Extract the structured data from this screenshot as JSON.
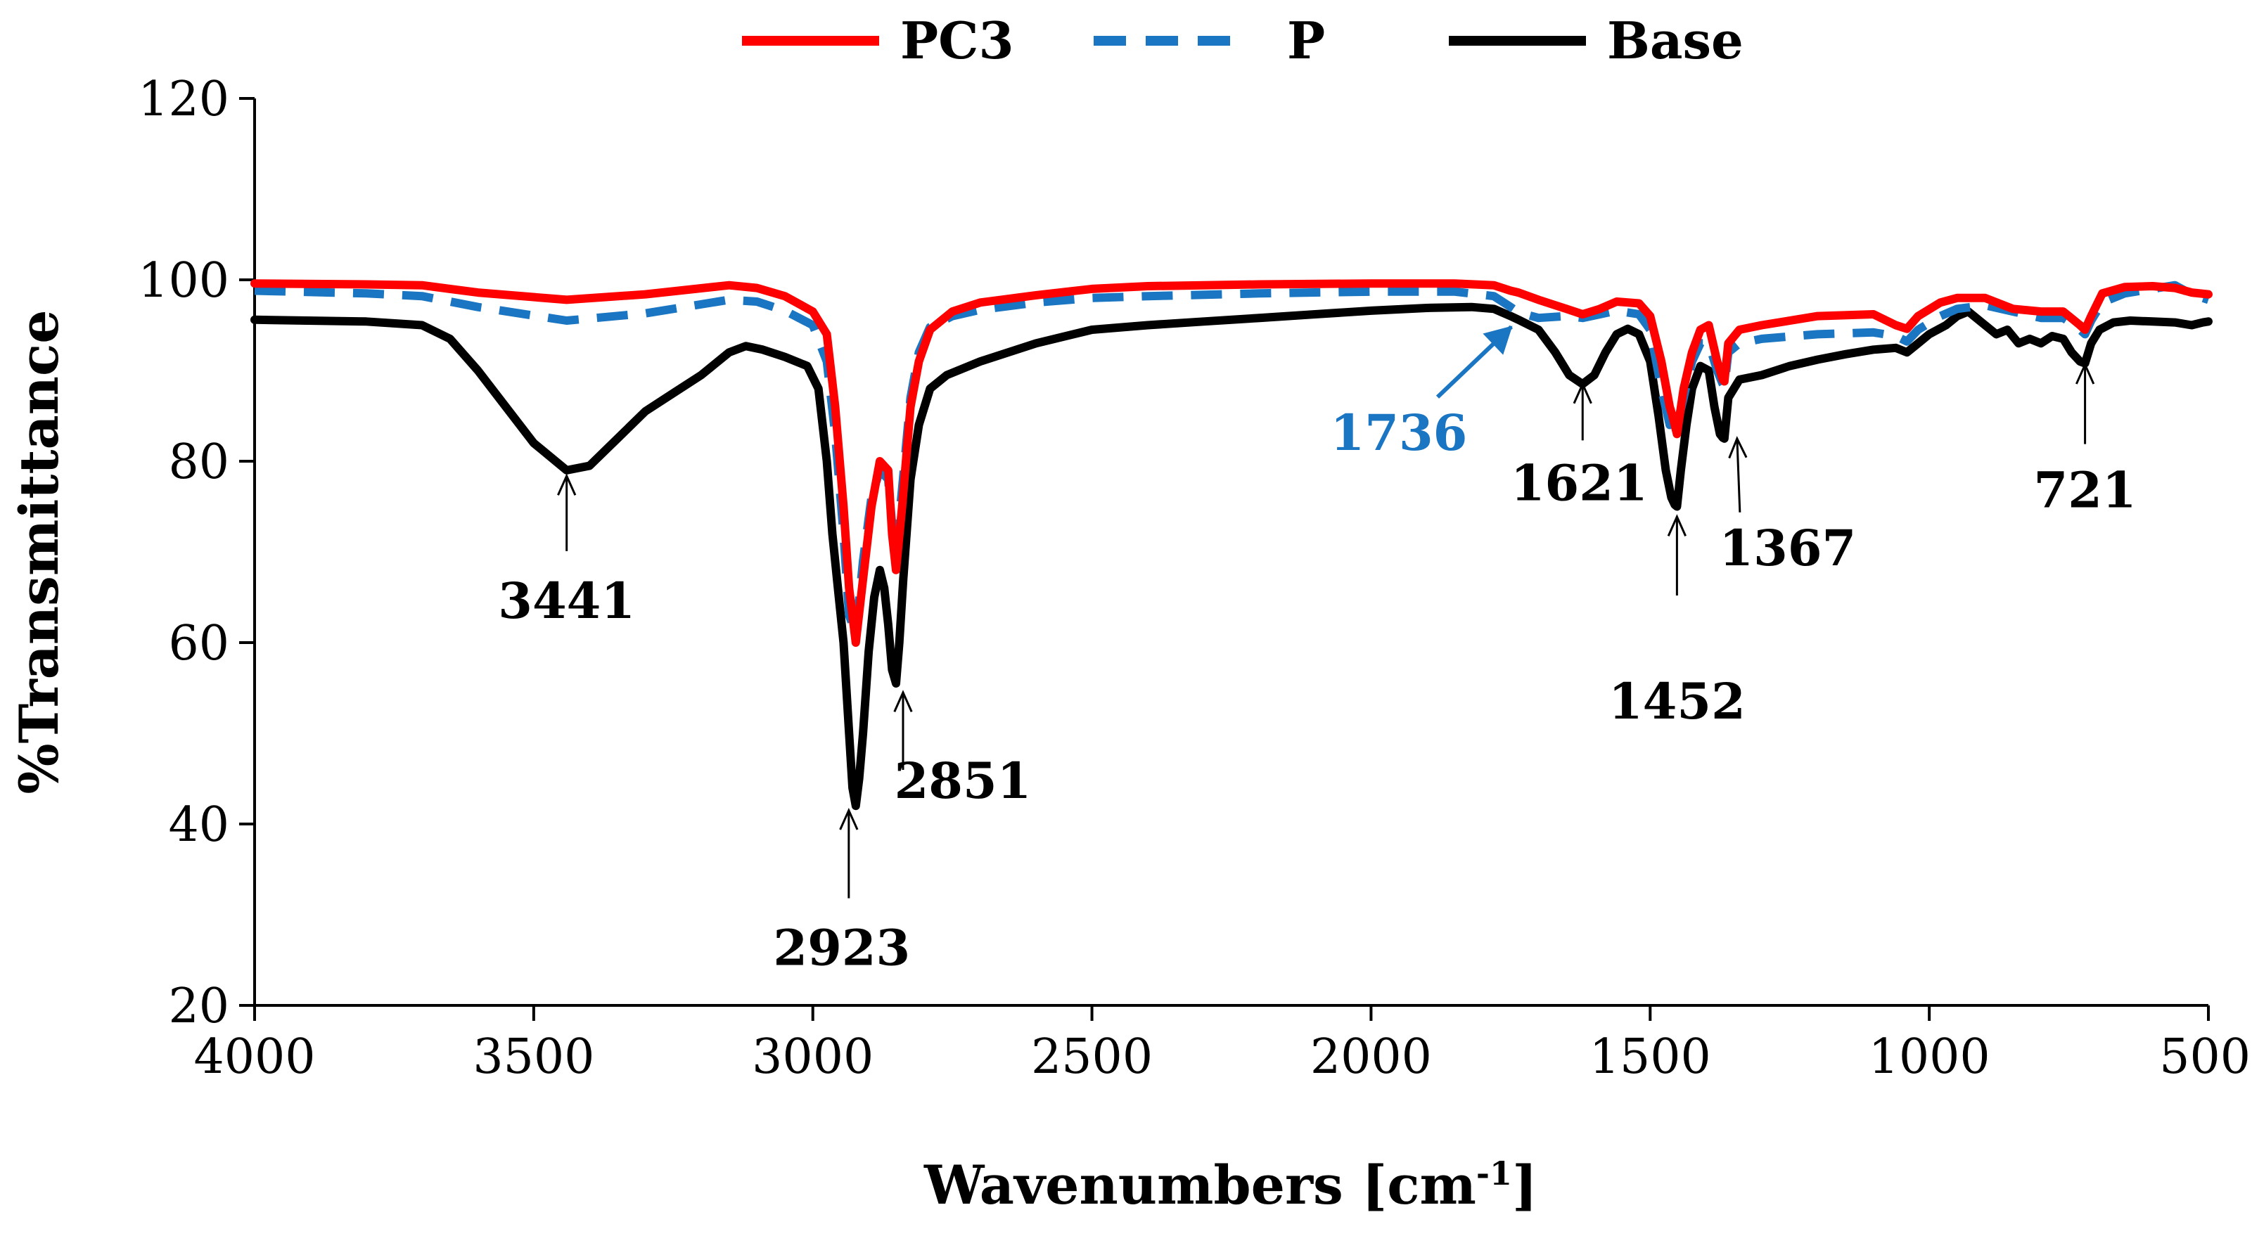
{
  "chart_data": {
    "type": "line",
    "title": "",
    "xlabel": "Wavenumbers [cm",
    "xlabel_sup": "-1",
    "xlabel_suffix": "]",
    "ylabel": "%Transmittance",
    "xlim": [
      4000,
      500
    ],
    "ylim": [
      20,
      120
    ],
    "x_ticks": [
      4000,
      3500,
      3000,
      2500,
      2000,
      1500,
      1000,
      500
    ],
    "x_tick_labels": [
      "4000",
      "3500",
      "3000",
      "2500",
      "2000",
      "1500",
      "1000",
      "500"
    ],
    "y_ticks": [
      20,
      40,
      60,
      80,
      100,
      120
    ],
    "y_tick_labels": [
      "20",
      "40",
      "60",
      "80",
      "100",
      "120"
    ],
    "grid": false,
    "legend_position": "top-center",
    "series": [
      {
        "name": "PC3",
        "color": "#ff0000",
        "dash": "solid",
        "points": [
          [
            4000,
            99.6
          ],
          [
            3800,
            99.5
          ],
          [
            3700,
            99.4
          ],
          [
            3600,
            98.6
          ],
          [
            3441,
            97.8
          ],
          [
            3300,
            98.4
          ],
          [
            3150,
            99.4
          ],
          [
            3100,
            99.1
          ],
          [
            3050,
            98.2
          ],
          [
            3000,
            96.5
          ],
          [
            2975,
            94
          ],
          [
            2960,
            86
          ],
          [
            2945,
            75
          ],
          [
            2935,
            66
          ],
          [
            2923,
            60
          ],
          [
            2910,
            67
          ],
          [
            2895,
            75
          ],
          [
            2880,
            80
          ],
          [
            2865,
            79
          ],
          [
            2858,
            72
          ],
          [
            2851,
            68
          ],
          [
            2840,
            75
          ],
          [
            2825,
            86
          ],
          [
            2810,
            91
          ],
          [
            2790,
            94.5
          ],
          [
            2750,
            96.5
          ],
          [
            2700,
            97.5
          ],
          [
            2600,
            98.3
          ],
          [
            2500,
            99
          ],
          [
            2400,
            99.3
          ],
          [
            2200,
            99.5
          ],
          [
            2000,
            99.6
          ],
          [
            1850,
            99.6
          ],
          [
            1780,
            99.4
          ],
          [
            1750,
            98.8
          ],
          [
            1736,
            98.6
          ],
          [
            1700,
            97.8
          ],
          [
            1650,
            96.8
          ],
          [
            1621,
            96.2
          ],
          [
            1590,
            96.8
          ],
          [
            1560,
            97.6
          ],
          [
            1520,
            97.4
          ],
          [
            1500,
            96
          ],
          [
            1480,
            91
          ],
          [
            1465,
            86
          ],
          [
            1460,
            85
          ],
          [
            1452,
            83
          ],
          [
            1440,
            88
          ],
          [
            1425,
            92
          ],
          [
            1410,
            94.5
          ],
          [
            1395,
            95
          ],
          [
            1380,
            91
          ],
          [
            1370,
            89
          ],
          [
            1367,
            88.8
          ],
          [
            1360,
            93
          ],
          [
            1340,
            94.5
          ],
          [
            1300,
            95
          ],
          [
            1200,
            96
          ],
          [
            1100,
            96.2
          ],
          [
            1060,
            95
          ],
          [
            1040,
            94.6
          ],
          [
            1020,
            96
          ],
          [
            980,
            97.5
          ],
          [
            950,
            98
          ],
          [
            900,
            98
          ],
          [
            850,
            96.8
          ],
          [
            800,
            96.5
          ],
          [
            760,
            96.5
          ],
          [
            740,
            95.5
          ],
          [
            730,
            95
          ],
          [
            721,
            94.5
          ],
          [
            710,
            96
          ],
          [
            690,
            98.5
          ],
          [
            650,
            99.2
          ],
          [
            600,
            99.3
          ],
          [
            560,
            99.1
          ],
          [
            530,
            98.6
          ],
          [
            500,
            98.4
          ]
        ]
      },
      {
        "name": "P",
        "color": "#1a75c2",
        "dash": "dashed",
        "points": [
          [
            4000,
            98.8
          ],
          [
            3800,
            98.5
          ],
          [
            3700,
            98.2
          ],
          [
            3600,
            97
          ],
          [
            3441,
            95.5
          ],
          [
            3300,
            96.3
          ],
          [
            3150,
            97.8
          ],
          [
            3100,
            97.6
          ],
          [
            3050,
            96.6
          ],
          [
            3000,
            95
          ],
          [
            2975,
            91
          ],
          [
            2960,
            83
          ],
          [
            2945,
            72
          ],
          [
            2935,
            63
          ],
          [
            2923,
            61
          ],
          [
            2910,
            69
          ],
          [
            2895,
            76
          ],
          [
            2880,
            79
          ],
          [
            2865,
            78
          ],
          [
            2858,
            73
          ],
          [
            2851,
            70
          ],
          [
            2840,
            77
          ],
          [
            2825,
            87
          ],
          [
            2810,
            92
          ],
          [
            2790,
            94.8
          ],
          [
            2750,
            96
          ],
          [
            2700,
            96.7
          ],
          [
            2600,
            97.5
          ],
          [
            2500,
            98
          ],
          [
            2400,
            98.2
          ],
          [
            2200,
            98.5
          ],
          [
            2000,
            98.7
          ],
          [
            1850,
            98.7
          ],
          [
            1780,
            98.2
          ],
          [
            1750,
            97
          ],
          [
            1736,
            96.4
          ],
          [
            1700,
            95.8
          ],
          [
            1650,
            96
          ],
          [
            1621,
            95.8
          ],
          [
            1590,
            96.2
          ],
          [
            1560,
            96.6
          ],
          [
            1520,
            96.2
          ],
          [
            1500,
            94.5
          ],
          [
            1480,
            88
          ],
          [
            1465,
            84
          ],
          [
            1460,
            84.5
          ],
          [
            1452,
            84
          ],
          [
            1440,
            87
          ],
          [
            1425,
            91
          ],
          [
            1410,
            93
          ],
          [
            1395,
            93
          ],
          [
            1380,
            90
          ],
          [
            1370,
            88.5
          ],
          [
            1367,
            88.2
          ],
          [
            1360,
            92
          ],
          [
            1340,
            93
          ],
          [
            1300,
            93.5
          ],
          [
            1200,
            94
          ],
          [
            1100,
            94.2
          ],
          [
            1060,
            93.8
          ],
          [
            1040,
            93.2
          ],
          [
            1020,
            94.5
          ],
          [
            980,
            96
          ],
          [
            950,
            96.8
          ],
          [
            900,
            97.2
          ],
          [
            850,
            96.5
          ],
          [
            800,
            95.8
          ],
          [
            760,
            95.8
          ],
          [
            740,
            95
          ],
          [
            730,
            94.5
          ],
          [
            721,
            94
          ],
          [
            710,
            95.5
          ],
          [
            690,
            97.5
          ],
          [
            650,
            98.5
          ],
          [
            600,
            99
          ],
          [
            560,
            99.4
          ],
          [
            530,
            98.4
          ],
          [
            500,
            97.8
          ]
        ]
      },
      {
        "name": "Base",
        "color": "#000000",
        "dash": "solid",
        "points": [
          [
            4000,
            95.6
          ],
          [
            3800,
            95.4
          ],
          [
            3700,
            95
          ],
          [
            3650,
            93.5
          ],
          [
            3600,
            90
          ],
          [
            3550,
            86
          ],
          [
            3500,
            82
          ],
          [
            3441,
            79
          ],
          [
            3400,
            79.5
          ],
          [
            3350,
            82.5
          ],
          [
            3300,
            85.5
          ],
          [
            3250,
            87.5
          ],
          [
            3200,
            89.5
          ],
          [
            3150,
            92
          ],
          [
            3120,
            92.7
          ],
          [
            3090,
            92.3
          ],
          [
            3050,
            91.5
          ],
          [
            3010,
            90.5
          ],
          [
            2990,
            88
          ],
          [
            2975,
            80
          ],
          [
            2965,
            72
          ],
          [
            2955,
            66
          ],
          [
            2945,
            60
          ],
          [
            2935,
            50
          ],
          [
            2929,
            44
          ],
          [
            2923,
            42
          ],
          [
            2917,
            45
          ],
          [
            2910,
            50
          ],
          [
            2900,
            59
          ],
          [
            2890,
            65
          ],
          [
            2880,
            68
          ],
          [
            2872,
            66
          ],
          [
            2865,
            62
          ],
          [
            2858,
            57
          ],
          [
            2851,
            55.5
          ],
          [
            2845,
            60
          ],
          [
            2838,
            67
          ],
          [
            2825,
            78
          ],
          [
            2810,
            84
          ],
          [
            2790,
            88
          ],
          [
            2760,
            89.5
          ],
          [
            2700,
            91
          ],
          [
            2600,
            93
          ],
          [
            2500,
            94.5
          ],
          [
            2400,
            95
          ],
          [
            2300,
            95.4
          ],
          [
            2200,
            95.8
          ],
          [
            2100,
            96.2
          ],
          [
            2000,
            96.6
          ],
          [
            1900,
            96.9
          ],
          [
            1820,
            97
          ],
          [
            1780,
            96.8
          ],
          [
            1750,
            96
          ],
          [
            1736,
            95.6
          ],
          [
            1700,
            94.5
          ],
          [
            1670,
            92
          ],
          [
            1645,
            89.5
          ],
          [
            1621,
            88.5
          ],
          [
            1600,
            89.5
          ],
          [
            1580,
            92
          ],
          [
            1560,
            94
          ],
          [
            1540,
            94.6
          ],
          [
            1520,
            94
          ],
          [
            1500,
            91
          ],
          [
            1485,
            85
          ],
          [
            1472,
            79
          ],
          [
            1462,
            76
          ],
          [
            1456,
            75.2
          ],
          [
            1452,
            75
          ],
          [
            1445,
            79
          ],
          [
            1435,
            84
          ],
          [
            1425,
            88
          ],
          [
            1410,
            90.5
          ],
          [
            1395,
            90
          ],
          [
            1385,
            86
          ],
          [
            1375,
            83
          ],
          [
            1370,
            82.6
          ],
          [
            1367,
            82.5
          ],
          [
            1360,
            87
          ],
          [
            1340,
            89
          ],
          [
            1300,
            89.5
          ],
          [
            1250,
            90.5
          ],
          [
            1200,
            91.2
          ],
          [
            1150,
            91.8
          ],
          [
            1100,
            92.3
          ],
          [
            1060,
            92.5
          ],
          [
            1040,
            92
          ],
          [
            1020,
            93
          ],
          [
            1000,
            94
          ],
          [
            970,
            95
          ],
          [
            950,
            96
          ],
          [
            930,
            96.5
          ],
          [
            900,
            95
          ],
          [
            880,
            94
          ],
          [
            860,
            94.5
          ],
          [
            840,
            93
          ],
          [
            820,
            93.5
          ],
          [
            800,
            93
          ],
          [
            780,
            93.8
          ],
          [
            760,
            93.5
          ],
          [
            745,
            92
          ],
          [
            730,
            91
          ],
          [
            721,
            90.8
          ],
          [
            710,
            93
          ],
          [
            695,
            94.5
          ],
          [
            670,
            95.3
          ],
          [
            640,
            95.5
          ],
          [
            600,
            95.4
          ],
          [
            560,
            95.3
          ],
          [
            530,
            95
          ],
          [
            510,
            95.3
          ],
          [
            500,
            95.4
          ]
        ]
      }
    ],
    "annotations": [
      {
        "text": "3441",
        "x": 3441,
        "y": 79,
        "color": "#000000"
      },
      {
        "text": "2923",
        "x": 2923,
        "y": 41.5,
        "color": "#000000"
      },
      {
        "text": "2851",
        "x": 2851,
        "y": 54.5,
        "color": "#000000"
      },
      {
        "text": "1736",
        "x": 1736,
        "y": 95.6,
        "color": "#1a75c2"
      },
      {
        "text": "1621",
        "x": 1621,
        "y": 88.5,
        "color": "#000000"
      },
      {
        "text": "1452",
        "x": 1452,
        "y": 74.5,
        "color": "#000000"
      },
      {
        "text": "1367",
        "x": 1367,
        "y": 82.5,
        "color": "#000000"
      },
      {
        "text": "721",
        "x": 721,
        "y": 90.8,
        "color": "#000000"
      }
    ]
  }
}
